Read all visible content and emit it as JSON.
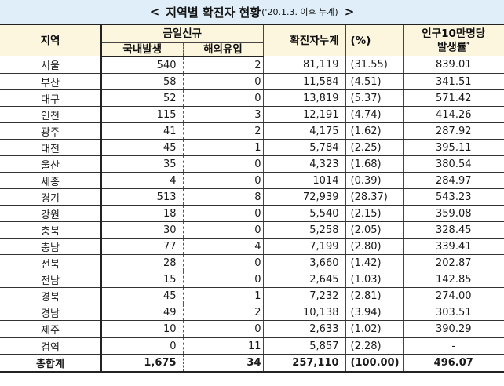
{
  "title": {
    "left_bracket": "<",
    "main": "지역별 확진자 현황",
    "sub": "('20.1.3. 이후 누계)",
    "right_bracket": ">"
  },
  "headers": {
    "region": "지역",
    "new_today": "금일신규",
    "domestic": "국내발생",
    "overseas": "해외유입",
    "cumulative": "확진자누계",
    "percent": "(%)",
    "rate_line1": "인구10만명당",
    "rate_line2": "발생률",
    "rate_mark": "*"
  },
  "rows": [
    {
      "region": "서울",
      "domestic": "540",
      "overseas": "2",
      "cumulative": "81,119",
      "percent": "(31.55)",
      "rate": "839.01"
    },
    {
      "region": "부산",
      "domestic": "58",
      "overseas": "0",
      "cumulative": "11,584",
      "percent": "(4.51)",
      "rate": "341.51"
    },
    {
      "region": "대구",
      "domestic": "52",
      "overseas": "0",
      "cumulative": "13,819",
      "percent": "(5.37)",
      "rate": "571.42"
    },
    {
      "region": "인천",
      "domestic": "115",
      "overseas": "3",
      "cumulative": "12,191",
      "percent": "(4.74)",
      "rate": "414.26"
    },
    {
      "region": "광주",
      "domestic": "41",
      "overseas": "2",
      "cumulative": "4,175",
      "percent": "(1.62)",
      "rate": "287.92"
    },
    {
      "region": "대전",
      "domestic": "45",
      "overseas": "1",
      "cumulative": "5,784",
      "percent": "(2.25)",
      "rate": "395.11"
    },
    {
      "region": "울산",
      "domestic": "35",
      "overseas": "0",
      "cumulative": "4,323",
      "percent": "(1.68)",
      "rate": "380.54"
    },
    {
      "region": "세종",
      "domestic": "4",
      "overseas": "0",
      "cumulative": "1014",
      "percent": "(0.39)",
      "rate": "284.97"
    },
    {
      "region": "경기",
      "domestic": "513",
      "overseas": "8",
      "cumulative": "72,939",
      "percent": "(28.37)",
      "rate": "543.23"
    },
    {
      "region": "강원",
      "domestic": "18",
      "overseas": "0",
      "cumulative": "5,540",
      "percent": "(2.15)",
      "rate": "359.08"
    },
    {
      "region": "충북",
      "domestic": "30",
      "overseas": "0",
      "cumulative": "5,258",
      "percent": "(2.05)",
      "rate": "328.45"
    },
    {
      "region": "충남",
      "domestic": "77",
      "overseas": "4",
      "cumulative": "7,199",
      "percent": "(2.80)",
      "rate": "339.41"
    },
    {
      "region": "전북",
      "domestic": "28",
      "overseas": "0",
      "cumulative": "3,660",
      "percent": "(1.42)",
      "rate": "202.87"
    },
    {
      "region": "전남",
      "domestic": "15",
      "overseas": "0",
      "cumulative": "2,645",
      "percent": "(1.03)",
      "rate": "142.85"
    },
    {
      "region": "경북",
      "domestic": "45",
      "overseas": "1",
      "cumulative": "7,232",
      "percent": "(2.81)",
      "rate": "274.00"
    },
    {
      "region": "경남",
      "domestic": "49",
      "overseas": "2",
      "cumulative": "10,138",
      "percent": "(3.94)",
      "rate": "303.51"
    },
    {
      "region": "제주",
      "domestic": "10",
      "overseas": "0",
      "cumulative": "2,633",
      "percent": "(1.02)",
      "rate": "390.29"
    },
    {
      "region": "검역",
      "domestic": "0",
      "overseas": "11",
      "cumulative": "5,857",
      "percent": "(2.28)",
      "rate": "-"
    }
  ],
  "total": {
    "region": "총합계",
    "domestic": "1,675",
    "overseas": "34",
    "cumulative": "257,110",
    "percent": "(100.00)",
    "rate": "496.07"
  },
  "colors": {
    "title_bg": "#dfeef8",
    "header_bg": "#fdf6de",
    "border": "#222222"
  }
}
